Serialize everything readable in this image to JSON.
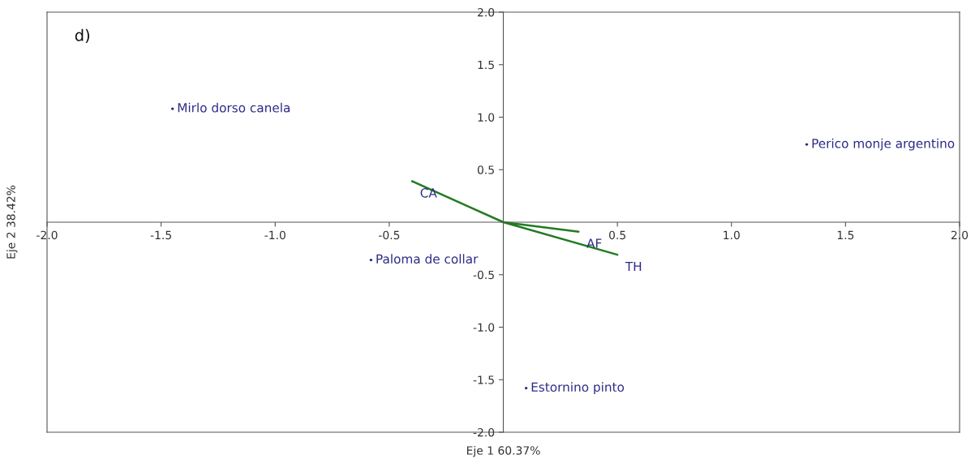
{
  "chart_data": {
    "type": "line",
    "xlabel": "Eje 1 60.37%",
    "ylabel": "Eje 2 38.42%",
    "xlim": [
      -2.0,
      2.0
    ],
    "ylim": [
      -2.0,
      2.0
    ],
    "xticks": [
      {
        "value": -2.0,
        "label": "-2.0"
      },
      {
        "value": -1.5,
        "label": "-1.5"
      },
      {
        "value": -1.0,
        "label": "-1.0"
      },
      {
        "value": -0.5,
        "label": "-0.5"
      },
      {
        "value": 0.5,
        "label": "0.5"
      },
      {
        "value": 1.0,
        "label": "1.0"
      },
      {
        "value": 1.5,
        "label": "1.5"
      },
      {
        "value": 2.0,
        "label": "2.0"
      }
    ],
    "yticks": [
      {
        "value": -2.0,
        "label": "-2.0"
      },
      {
        "value": -1.5,
        "label": "-1.5"
      },
      {
        "value": -1.0,
        "label": "-1.0"
      },
      {
        "value": -0.5,
        "label": "-0.5"
      },
      {
        "value": 0.5,
        "label": "0.5"
      },
      {
        "value": 1.0,
        "label": "1.0"
      },
      {
        "value": 1.5,
        "label": "1.5"
      },
      {
        "value": 2.0,
        "label": "2.0"
      }
    ],
    "grid": false,
    "legend": false,
    "marker": "none",
    "line_style": "solid",
    "series": [
      {
        "color": "#237a23",
        "x": [
          0,
          -0.4,
          null,
          0,
          0.33,
          null,
          0,
          0.5
        ],
        "values": [
          0,
          0.39,
          null,
          0,
          -0.09,
          null,
          0,
          -0.31
        ],
        "value_labels": [
          null,
          "CA",
          null,
          null,
          "AF",
          null,
          null,
          "TH"
        ]
      },
      {
        "type": "scatter",
        "color": "#2b2b86",
        "x": [
          -1.45,
          1.33,
          -0.58,
          0.1
        ],
        "values": [
          1.08,
          0.74,
          -0.36,
          -1.58
        ],
        "value_labels": [
          "Mirlo dorso canela",
          "Perico monje argentino",
          "Paloma de collar",
          "Estornino pinto"
        ]
      }
    ],
    "annotations": [
      "d)"
    ]
  }
}
